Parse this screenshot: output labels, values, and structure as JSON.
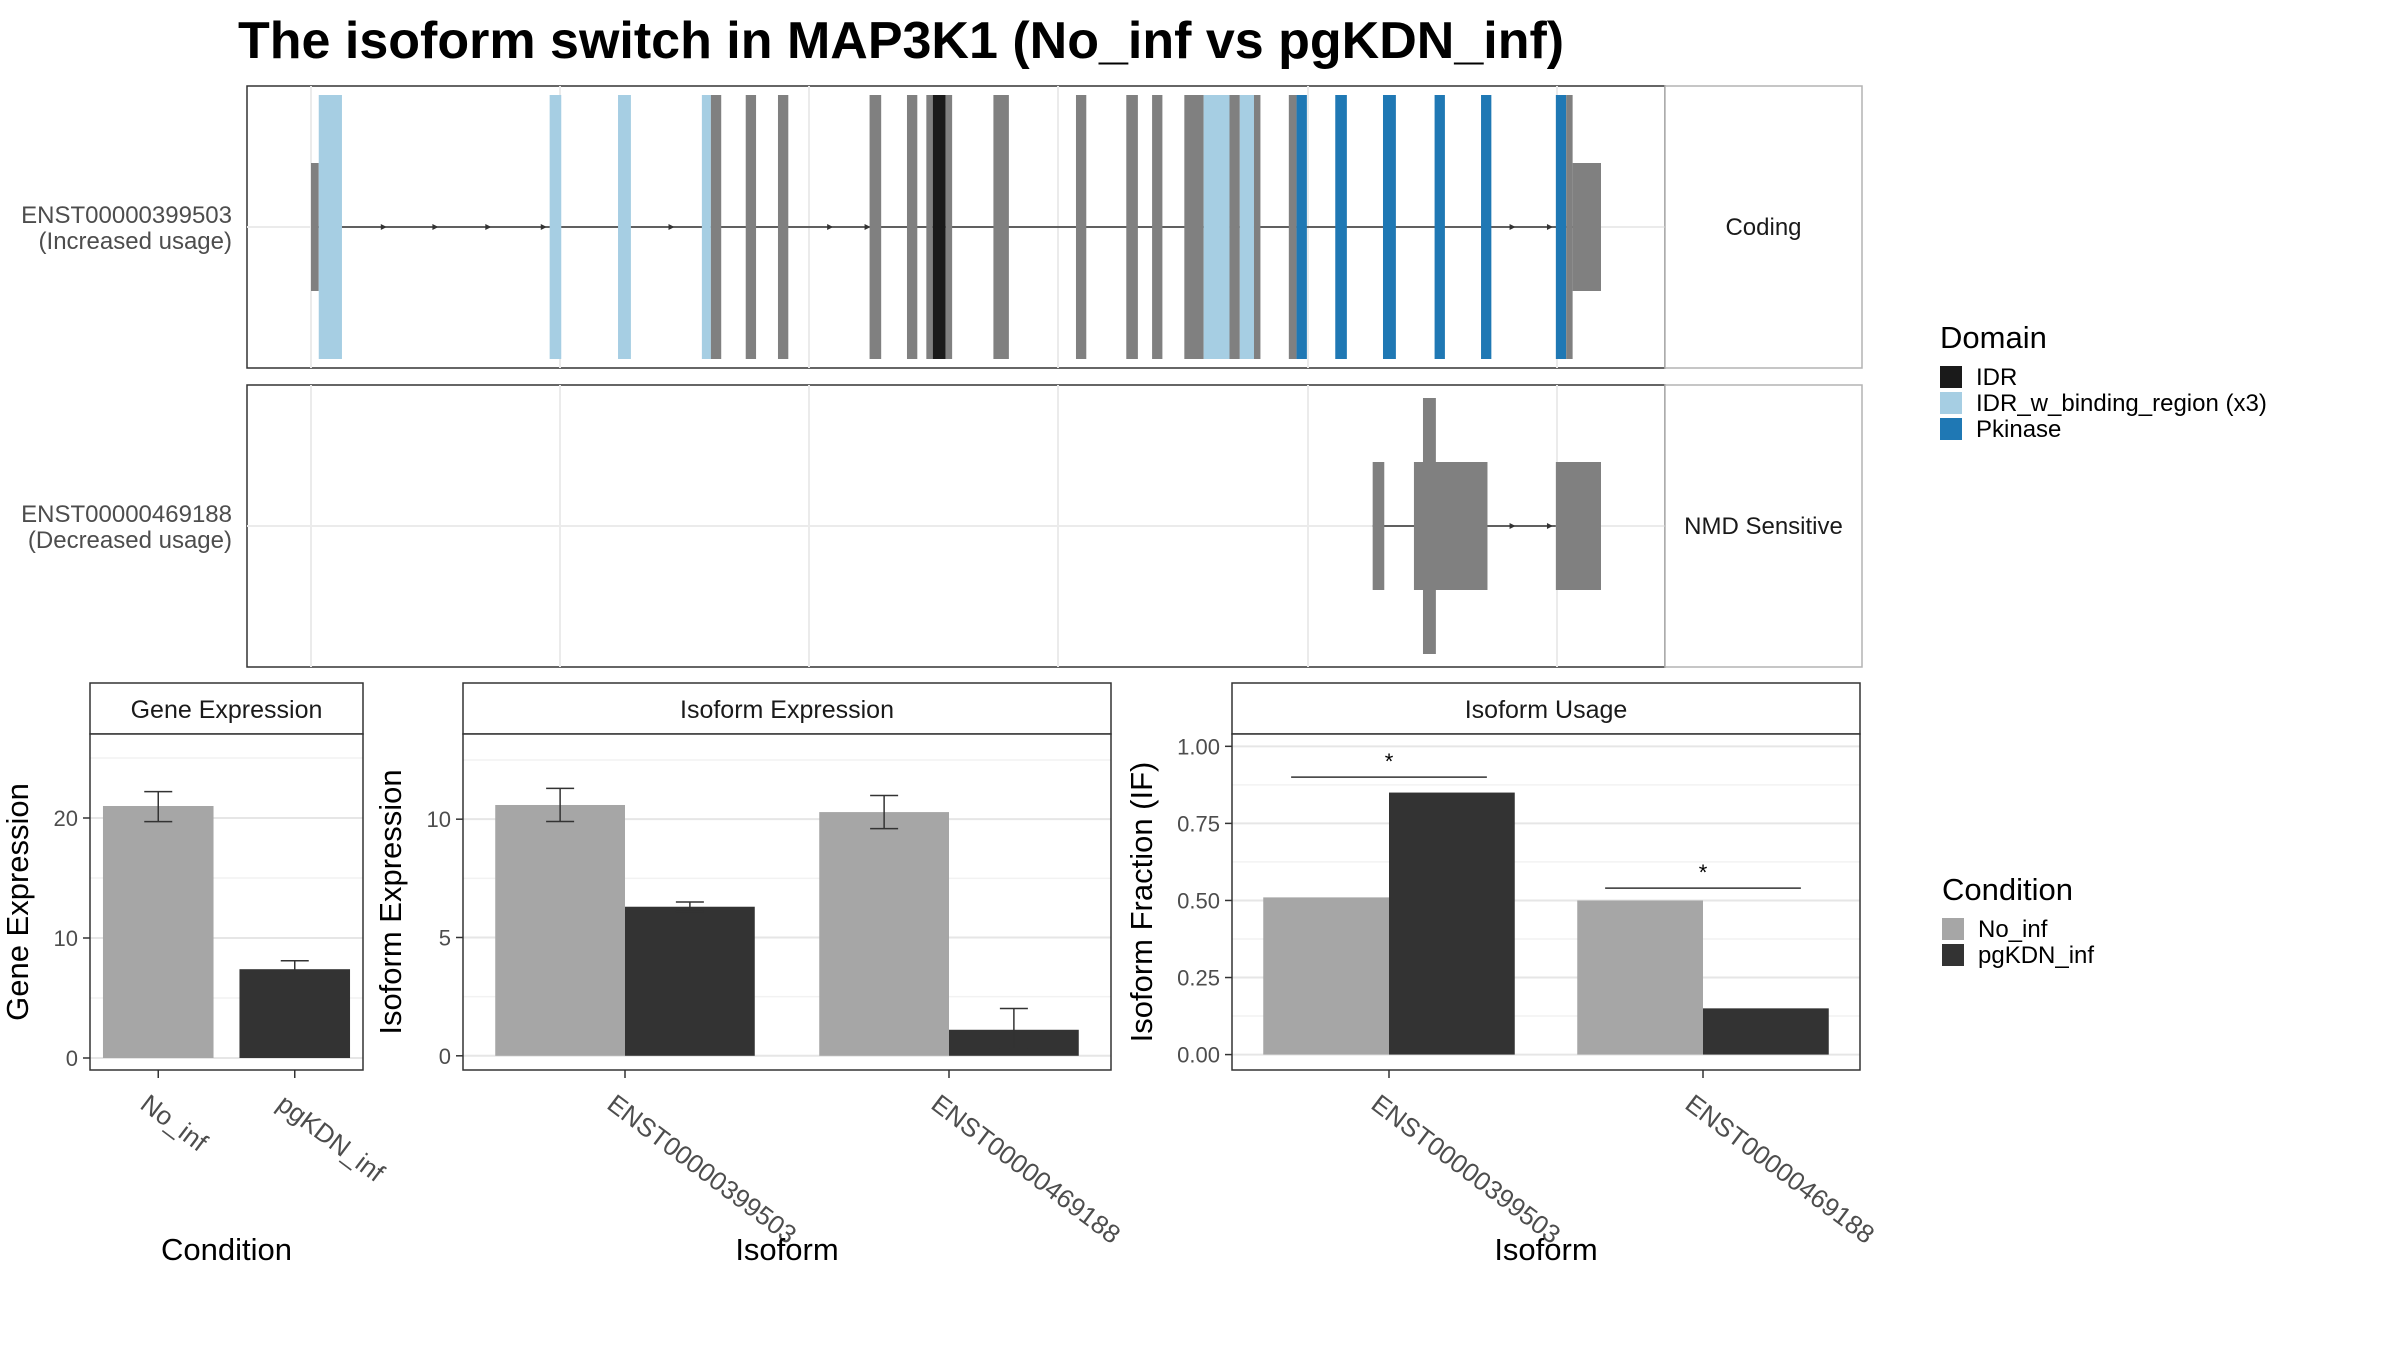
{
  "title": "The isoform switch in MAP3K1 (No_inf vs pgKDN_inf)",
  "colors": {
    "exon": "#808080",
    "IDR": "#1a1a1a",
    "IDR_w_binding_region": "#a6cee3",
    "Pkinase": "#1f78b4",
    "No_inf": "#a6a6a6",
    "pgKDN_inf": "#333333"
  },
  "domain_legend": {
    "title": "Domain",
    "items": [
      {
        "label": "IDR",
        "color_key": "IDR"
      },
      {
        "label": "IDR_w_binding_region (x3)",
        "color_key": "IDR_w_binding_region"
      },
      {
        "label": "Pkinase",
        "color_key": "Pkinase"
      }
    ]
  },
  "condition_legend": {
    "title": "Condition",
    "items": [
      {
        "label": "No_inf",
        "color_key": "No_inf"
      },
      {
        "label": "pgKDN_inf",
        "color_key": "pgKDN_inf"
      }
    ]
  },
  "chart_data": [
    {
      "type": "diagram",
      "panel": "transcript-structure",
      "transcripts": [
        {
          "id": "ENST00000399503",
          "usage": "(Increased usage)",
          "facet_label": "Coding",
          "intron_span": [
            0.005,
            1.0
          ],
          "exons": [
            {
              "start": 0.0,
              "end": 0.006,
              "kind": "utr"
            },
            {
              "start": 0.006,
              "end": 0.024,
              "kind": "IDR_w_binding_region"
            },
            {
              "start": 0.185,
              "end": 0.194,
              "kind": "IDR_w_binding_region"
            },
            {
              "start": 0.238,
              "end": 0.248,
              "kind": "IDR_w_binding_region"
            },
            {
              "start": 0.303,
              "end": 0.31,
              "kind": "IDR_w_binding_region"
            },
            {
              "start": 0.31,
              "end": 0.318,
              "kind": "exon"
            },
            {
              "start": 0.337,
              "end": 0.345,
              "kind": "exon"
            },
            {
              "start": 0.362,
              "end": 0.37,
              "kind": "exon"
            },
            {
              "start": 0.433,
              "end": 0.442,
              "kind": "exon"
            },
            {
              "start": 0.462,
              "end": 0.47,
              "kind": "exon"
            },
            {
              "start": 0.477,
              "end": 0.482,
              "kind": "exon"
            },
            {
              "start": 0.482,
              "end": 0.492,
              "kind": "IDR"
            },
            {
              "start": 0.492,
              "end": 0.497,
              "kind": "exon"
            },
            {
              "start": 0.529,
              "end": 0.541,
              "kind": "exon"
            },
            {
              "start": 0.593,
              "end": 0.601,
              "kind": "exon"
            },
            {
              "start": 0.632,
              "end": 0.641,
              "kind": "exon"
            },
            {
              "start": 0.652,
              "end": 0.66,
              "kind": "exon"
            },
            {
              "start": 0.677,
              "end": 0.692,
              "kind": "exon"
            },
            {
              "start": 0.692,
              "end": 0.712,
              "kind": "IDR_w_binding_region"
            },
            {
              "start": 0.712,
              "end": 0.72,
              "kind": "exon"
            },
            {
              "start": 0.72,
              "end": 0.731,
              "kind": "IDR_w_binding_region"
            },
            {
              "start": 0.731,
              "end": 0.736,
              "kind": "exon"
            },
            {
              "start": 0.758,
              "end": 0.764,
              "kind": "exon"
            },
            {
              "start": 0.764,
              "end": 0.772,
              "kind": "Pkinase"
            },
            {
              "start": 0.794,
              "end": 0.803,
              "kind": "Pkinase"
            },
            {
              "start": 0.831,
              "end": 0.841,
              "kind": "Pkinase"
            },
            {
              "start": 0.871,
              "end": 0.879,
              "kind": "Pkinase"
            },
            {
              "start": 0.907,
              "end": 0.915,
              "kind": "Pkinase"
            },
            {
              "start": 0.965,
              "end": 0.973,
              "kind": "Pkinase"
            },
            {
              "start": 0.973,
              "end": 0.978,
              "kind": "exon"
            },
            {
              "start": 0.978,
              "end": 1.0,
              "kind": "utr"
            }
          ],
          "arrows": [
            0.058,
            0.098,
            0.139,
            0.182,
            0.281,
            0.308,
            0.404,
            0.433,
            0.933,
            0.962
          ]
        },
        {
          "id": "ENST00000469188",
          "usage": "(Decreased usage)",
          "facet_label": "NMD Sensitive",
          "intron_span": [
            0.823,
            0.965
          ],
          "exons": [
            {
              "start": 0.823,
              "end": 0.832,
              "kind": "utr"
            },
            {
              "start": 0.862,
              "end": 0.872,
              "kind": "tall"
            },
            {
              "start": 0.855,
              "end": 0.912,
              "kind": "utr"
            },
            {
              "start": 0.965,
              "end": 1.0,
              "kind": "utr"
            }
          ],
          "arrows": [
            0.933,
            0.962
          ]
        }
      ]
    },
    {
      "type": "bar",
      "strip_title": "Gene Expression",
      "xlabel": "Condition",
      "ylabel": "Gene Expression",
      "categories": [
        "No_inf",
        "pgKDN_inf"
      ],
      "ylim": [
        -1,
        27
      ],
      "yticks": [
        0,
        10,
        20
      ],
      "series": [
        {
          "name": "No_inf",
          "values": [
            21.0,
            null
          ]
        },
        {
          "name": "pgKDN_inf",
          "values": [
            null,
            7.4
          ]
        }
      ],
      "error_bars": [
        [
          19.7,
          22.2
        ],
        [
          6.9,
          8.1
        ]
      ],
      "significance": []
    },
    {
      "type": "bar",
      "strip_title": "Isoform Expression",
      "xlabel": "Isoform",
      "ylabel": "Isoform Expression",
      "categories": [
        "ENST00000399503",
        "ENST00000469188"
      ],
      "ylim": [
        -0.6,
        13.6
      ],
      "yticks": [
        0,
        5,
        10
      ],
      "series": [
        {
          "name": "No_inf",
          "values": [
            10.6,
            10.3
          ]
        },
        {
          "name": "pgKDN_inf",
          "values": [
            6.3,
            1.1
          ]
        }
      ],
      "error_bars": [
        [
          [
            9.9,
            11.3
          ],
          [
            9.6,
            11.0
          ]
        ],
        [
          [
            6.1,
            6.5
          ],
          [
            0.3,
            2.0
          ]
        ]
      ],
      "significance": []
    },
    {
      "type": "bar",
      "strip_title": "Isoform Usage",
      "xlabel": "Isoform",
      "ylabel": "Isoform Fraction (IF)",
      "categories": [
        "ENST00000399503",
        "ENST00000469188"
      ],
      "ylim": [
        -0.05,
        1.04
      ],
      "yticks": [
        0.0,
        0.25,
        0.5,
        0.75,
        1.0
      ],
      "ytick_labels": [
        "0.00",
        "0.25",
        "0.50",
        "0.75",
        "1.00"
      ],
      "series": [
        {
          "name": "No_inf",
          "values": [
            0.51,
            0.5
          ]
        },
        {
          "name": "pgKDN_inf",
          "values": [
            0.85,
            0.15
          ]
        }
      ],
      "error_bars": [],
      "significance": [
        {
          "category": "ENST00000399503",
          "label": "*",
          "y": 0.9
        },
        {
          "category": "ENST00000469188",
          "label": "*",
          "y": 0.54
        }
      ]
    }
  ]
}
